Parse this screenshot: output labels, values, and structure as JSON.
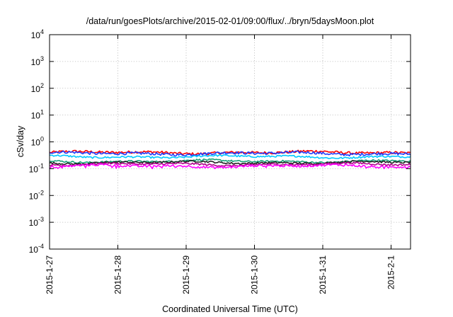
{
  "chart_data": {
    "type": "line",
    "title": "/data/run/goesPlots/archive/2015-02-01/09:00/flux/../bryn/5daysMoon.plot",
    "xlabel": "Coordinated Universal Time (UTC)",
    "ylabel": "cSv/day",
    "yscale": "log",
    "ylim": [
      0.0001,
      10000
    ],
    "xlim": [
      "2015-1-27",
      "2015-2-1 09:00"
    ],
    "grid": true,
    "x_ticks": [
      "2015-1-27",
      "2015-1-28",
      "2015-1-29",
      "2015-1-30",
      "2015-1-31",
      "2015-2-1"
    ],
    "y_ticks": [
      {
        "base": "10",
        "exp": "-4",
        "value": 0.0001
      },
      {
        "base": "10",
        "exp": "-3",
        "value": 0.001
      },
      {
        "base": "10",
        "exp": "-2",
        "value": 0.01
      },
      {
        "base": "10",
        "exp": "-1",
        "value": 0.1
      },
      {
        "base": "10",
        "exp": "0",
        "value": 1
      },
      {
        "base": "10",
        "exp": "1",
        "value": 10
      },
      {
        "base": "10",
        "exp": "2",
        "value": 100
      },
      {
        "base": "10",
        "exp": "3",
        "value": 1000
      },
      {
        "base": "10",
        "exp": "4",
        "value": 10000
      }
    ],
    "series": [
      {
        "color": "#ff0000",
        "level": 0.4,
        "noise": 0.045
      },
      {
        "color": "#1e3cff",
        "level": 0.37,
        "noise": 0.045
      },
      {
        "color": "#00c8ff",
        "level": 0.28,
        "noise": 0.03
      },
      {
        "color": "#1aa37a",
        "level": 0.19,
        "noise": 0.03
      },
      {
        "color": "#222222",
        "level": 0.17,
        "noise": 0.03
      },
      {
        "color": "#b0008a",
        "level": 0.145,
        "noise": 0.03
      },
      {
        "color": "#ff00ff",
        "level": 0.125,
        "noise": 0.04
      }
    ]
  }
}
